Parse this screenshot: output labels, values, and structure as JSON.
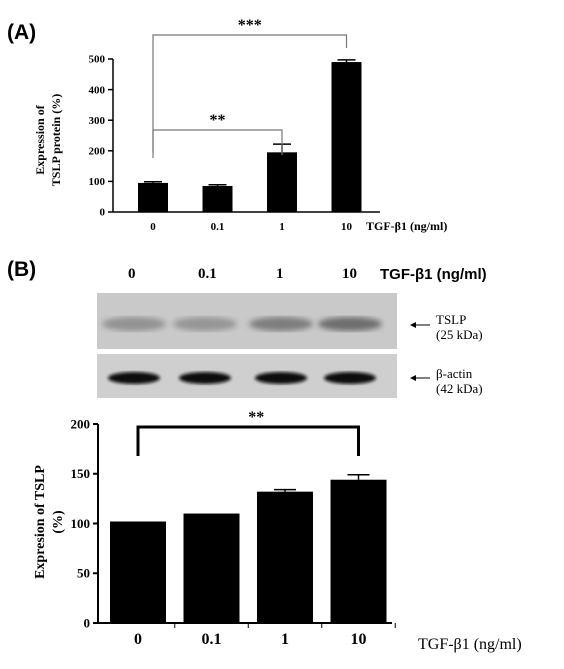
{
  "panel_a": {
    "label": "(A)",
    "chart_data": {
      "type": "bar",
      "categories": [
        "0",
        "0.1",
        "1",
        "10"
      ],
      "values": [
        95,
        85,
        195,
        490
      ],
      "errors": [
        4,
        4,
        27,
        7
      ],
      "ylabel_line1": "Expression of",
      "ylabel_line2": "TSLP protein (%)",
      "xlabel": "TGF-β1 (ng/ml)",
      "ylim": [
        0,
        500
      ],
      "yticks": [
        "0",
        "100",
        "200",
        "300",
        "400",
        "500"
      ],
      "ytick_values": [
        0,
        100,
        200,
        300,
        400,
        500
      ],
      "significance": [
        {
          "label": "**",
          "from": 0,
          "to": 2
        },
        {
          "label": "***",
          "from": 0,
          "to": 3
        }
      ],
      "grid": false
    }
  },
  "panel_b": {
    "label": "(B)",
    "blot": {
      "lanes": [
        "0",
        "0.1",
        "1",
        "10"
      ],
      "treatment": "TGF-β1 (ng/ml)",
      "tslp_label_line1": "TSLP",
      "tslp_label_line2": "(25 kDa)",
      "actin_label_line1": "β-actin",
      "actin_label_line2": "(42 kDa)",
      "tslp_band_intensity": [
        0.3,
        0.28,
        0.42,
        0.5
      ],
      "actin_band_intensity": [
        0.95,
        0.92,
        0.95,
        0.95
      ]
    },
    "chart_data": {
      "type": "bar",
      "categories": [
        "0",
        "0.1",
        "1",
        "10"
      ],
      "values": [
        102,
        110,
        132,
        144
      ],
      "errors": [
        0,
        0,
        2,
        5
      ],
      "ylabel_line1": "Expresion of TSLP",
      "ylabel_line2": "(%)",
      "xlabel": "TGF-β1 (ng/ml)",
      "ylim": [
        0,
        200
      ],
      "yticks": [
        "0",
        "50",
        "100",
        "150",
        "200"
      ],
      "ytick_values": [
        0,
        50,
        100,
        150,
        200
      ],
      "significance": [
        {
          "label": "**",
          "from": 0,
          "to": 3
        }
      ],
      "grid": false
    }
  }
}
